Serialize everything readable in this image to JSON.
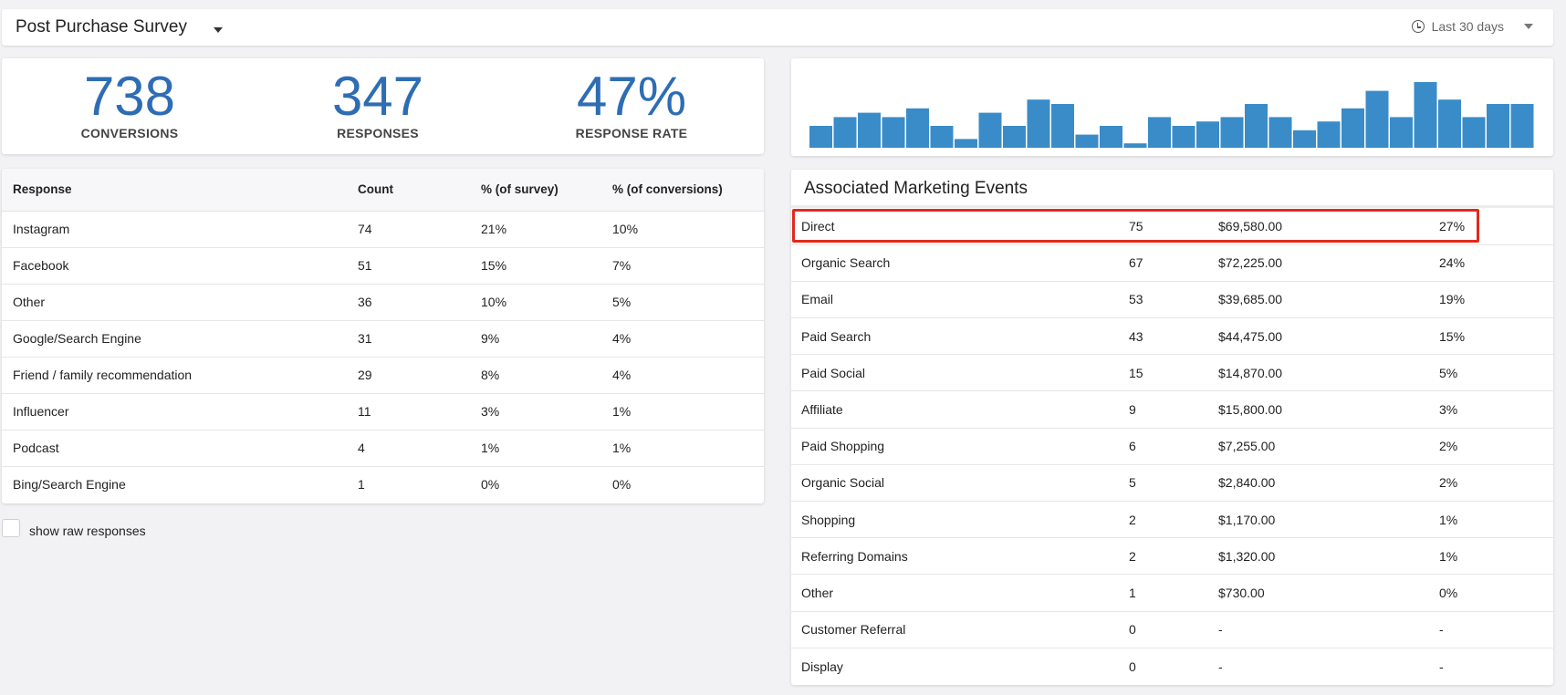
{
  "header": {
    "survey_title": "Post Purchase Survey",
    "date_range": "Last 30 days"
  },
  "stats": [
    {
      "value": "738",
      "label": "CONVERSIONS"
    },
    {
      "value": "347",
      "label": "RESPONSES"
    },
    {
      "value": "47%",
      "label": "RESPONSE RATE"
    }
  ],
  "chart_data": {
    "type": "bar",
    "title": "",
    "xlabel": "",
    "ylabel": "",
    "color": "#3a8cc8",
    "values": [
      5,
      7,
      8,
      7,
      9,
      5,
      2,
      8,
      5,
      11,
      10,
      3,
      5,
      1,
      7,
      5,
      6,
      7,
      10,
      7,
      4,
      6,
      9,
      13,
      7,
      15,
      11,
      7,
      10,
      10
    ],
    "ylim": [
      0,
      15
    ]
  },
  "responses": {
    "headers": [
      "Response",
      "Count",
      "% (of survey)",
      "% (of conversions)"
    ],
    "rows": [
      [
        "Instagram",
        "74",
        "21%",
        "10%"
      ],
      [
        "Facebook",
        "51",
        "15%",
        "7%"
      ],
      [
        "Other",
        "36",
        "10%",
        "5%"
      ],
      [
        "Google/Search Engine",
        "31",
        "9%",
        "4%"
      ],
      [
        "Friend / family recommendation",
        "29",
        "8%",
        "4%"
      ],
      [
        "Influencer",
        "11",
        "3%",
        "1%"
      ],
      [
        "Podcast",
        "4",
        "1%",
        "1%"
      ],
      [
        "Bing/Search Engine",
        "1",
        "0%",
        "0%"
      ]
    ]
  },
  "raw_toggle_label": "show raw responses",
  "events": {
    "title": "Associated Marketing Events",
    "highlight_color": "#e02a1e",
    "rows": [
      [
        "Direct",
        "75",
        "$69,580.00",
        "27%"
      ],
      [
        "Organic Search",
        "67",
        "$72,225.00",
        "24%"
      ],
      [
        "Email",
        "53",
        "$39,685.00",
        "19%"
      ],
      [
        "Paid Search",
        "43",
        "$44,475.00",
        "15%"
      ],
      [
        "Paid Social",
        "15",
        "$14,870.00",
        "5%"
      ],
      [
        "Affiliate",
        "9",
        "$15,800.00",
        "3%"
      ],
      [
        "Paid Shopping",
        "6",
        "$7,255.00",
        "2%"
      ],
      [
        "Organic Social",
        "5",
        "$2,840.00",
        "2%"
      ],
      [
        "Shopping",
        "2",
        "$1,170.00",
        "1%"
      ],
      [
        "Referring Domains",
        "2",
        "$1,320.00",
        "1%"
      ],
      [
        "Other",
        "1",
        "$730.00",
        "0%"
      ],
      [
        "Customer Referral",
        "0",
        "-",
        "-"
      ],
      [
        "Display",
        "0",
        "-",
        "-"
      ]
    ]
  }
}
